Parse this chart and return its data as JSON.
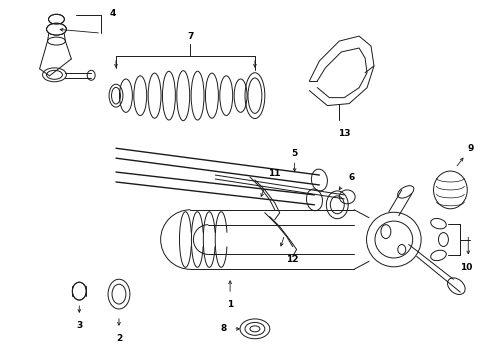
{
  "bg_color": "#ffffff",
  "line_color": "#1a1a1a",
  "fig_width": 4.89,
  "fig_height": 3.6,
  "dpi": 100,
  "lw": 0.7,
  "fontsize": 6.5
}
